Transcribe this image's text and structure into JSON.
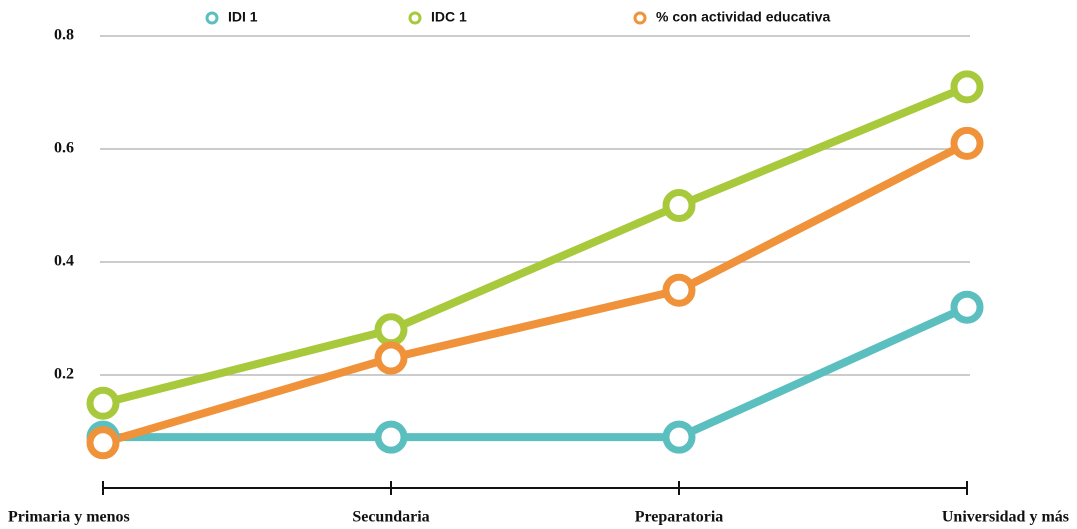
{
  "chart_data": {
    "type": "line",
    "categories": [
      "Primaria y menos",
      "Secundaria",
      "Preparatoria",
      "Universidad y más"
    ],
    "series": [
      {
        "name": "IDI 1",
        "color": "#5bbfbf",
        "values": [
          0.09,
          0.09,
          0.09,
          0.32
        ]
      },
      {
        "name": "IDC 1",
        "color": "#a8c93c",
        "values": [
          0.15,
          0.28,
          0.5,
          0.71
        ]
      },
      {
        "name": "% con actividad educativa",
        "color": "#f0923a",
        "values": [
          0.08,
          0.23,
          0.35,
          0.61
        ]
      }
    ],
    "ylim": [
      0,
      0.8
    ],
    "yticks": [
      0.2,
      0.4,
      0.6,
      0.8
    ],
    "grid": true,
    "legend": "top"
  }
}
